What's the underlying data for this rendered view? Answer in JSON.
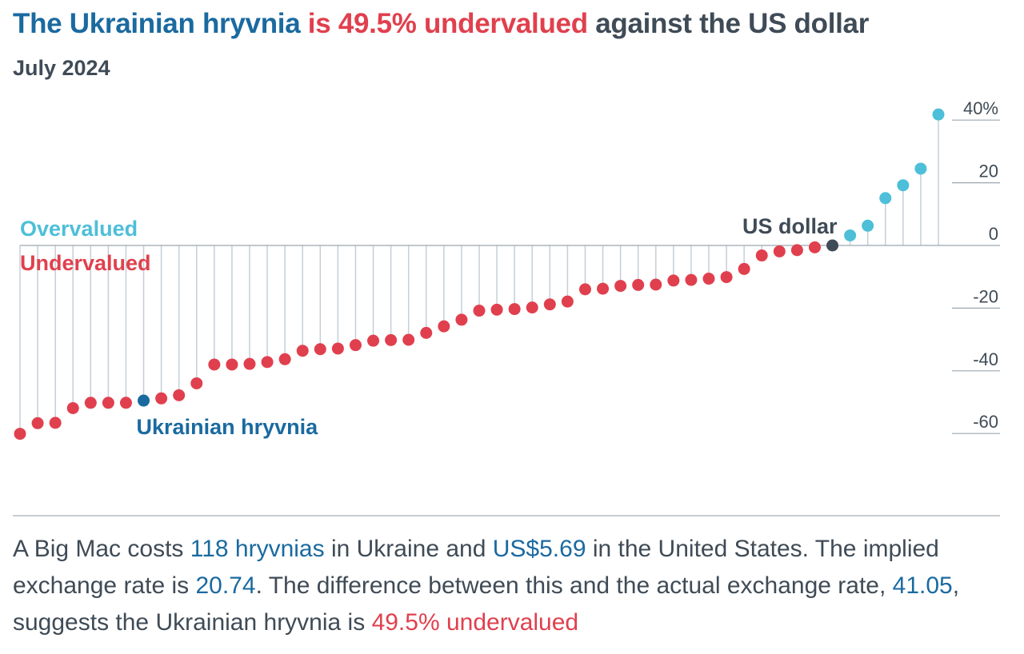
{
  "title": {
    "part1": "The Ukrainian hryvnia",
    "part2": " is 49.5% undervalued",
    "part3": " against the US dollar"
  },
  "subtitle": "July 2024",
  "colors": {
    "undervalued": "#e0404e",
    "overvalued": "#4dbfd8",
    "highlight": "#1a6aa0",
    "base": "#3f4b56",
    "stem": "#c5cfd6",
    "axis": "#9ba7b0"
  },
  "chart_data": {
    "type": "lollipop",
    "title": "The Ukrainian hryvnia is 49.5% undervalued against the US dollar",
    "subtitle": "July 2024",
    "ylim": [
      -60,
      40
    ],
    "yticks": [
      40,
      20,
      0,
      -20,
      -40,
      -60
    ],
    "ytick_labels": [
      "40%",
      "20",
      "0",
      "-20",
      "-40",
      "-60"
    ],
    "zone_labels": {
      "over": "Overvalued",
      "under": "Undervalued"
    },
    "values": [
      -60.1,
      -56.7,
      -56.6,
      -51.9,
      -50.2,
      -50.2,
      -50.2,
      -49.5,
      -48.8,
      -47.8,
      -44.0,
      -38.0,
      -38.0,
      -37.8,
      -37.2,
      -36.3,
      -33.6,
      -33.1,
      -32.9,
      -31.8,
      -30.4,
      -30.2,
      -30.1,
      -27.9,
      -25.8,
      -23.7,
      -20.8,
      -20.5,
      -20.3,
      -19.8,
      -18.8,
      -17.9,
      -14.0,
      -13.8,
      -12.9,
      -12.6,
      -12.5,
      -11.2,
      -11.0,
      -10.6,
      -10.1,
      -7.5,
      -3.2,
      -1.9,
      -1.5,
      -0.6,
      0.0,
      3.2,
      6.3,
      15.1,
      19.2,
      24.5,
      41.8
    ],
    "highlights": [
      {
        "index": 7,
        "label": "Ukrainian hryvnia",
        "role": "target"
      },
      {
        "index": 46,
        "label": "US dollar",
        "role": "base"
      }
    ]
  },
  "description": {
    "s1": "A Big Mac costs ",
    "v1": "118 hryvnias",
    "s2": " in Ukraine and ",
    "v2": "US$5.69",
    "s3": " in the United States. The implied exchange rate is ",
    "v3": "20.74",
    "s4": ". The difference between this and the actual exchange rate, ",
    "v4": "41.05",
    "s5": ", suggests the Ukrainian hryvnia is ",
    "v5": "49.5% undervalued"
  }
}
